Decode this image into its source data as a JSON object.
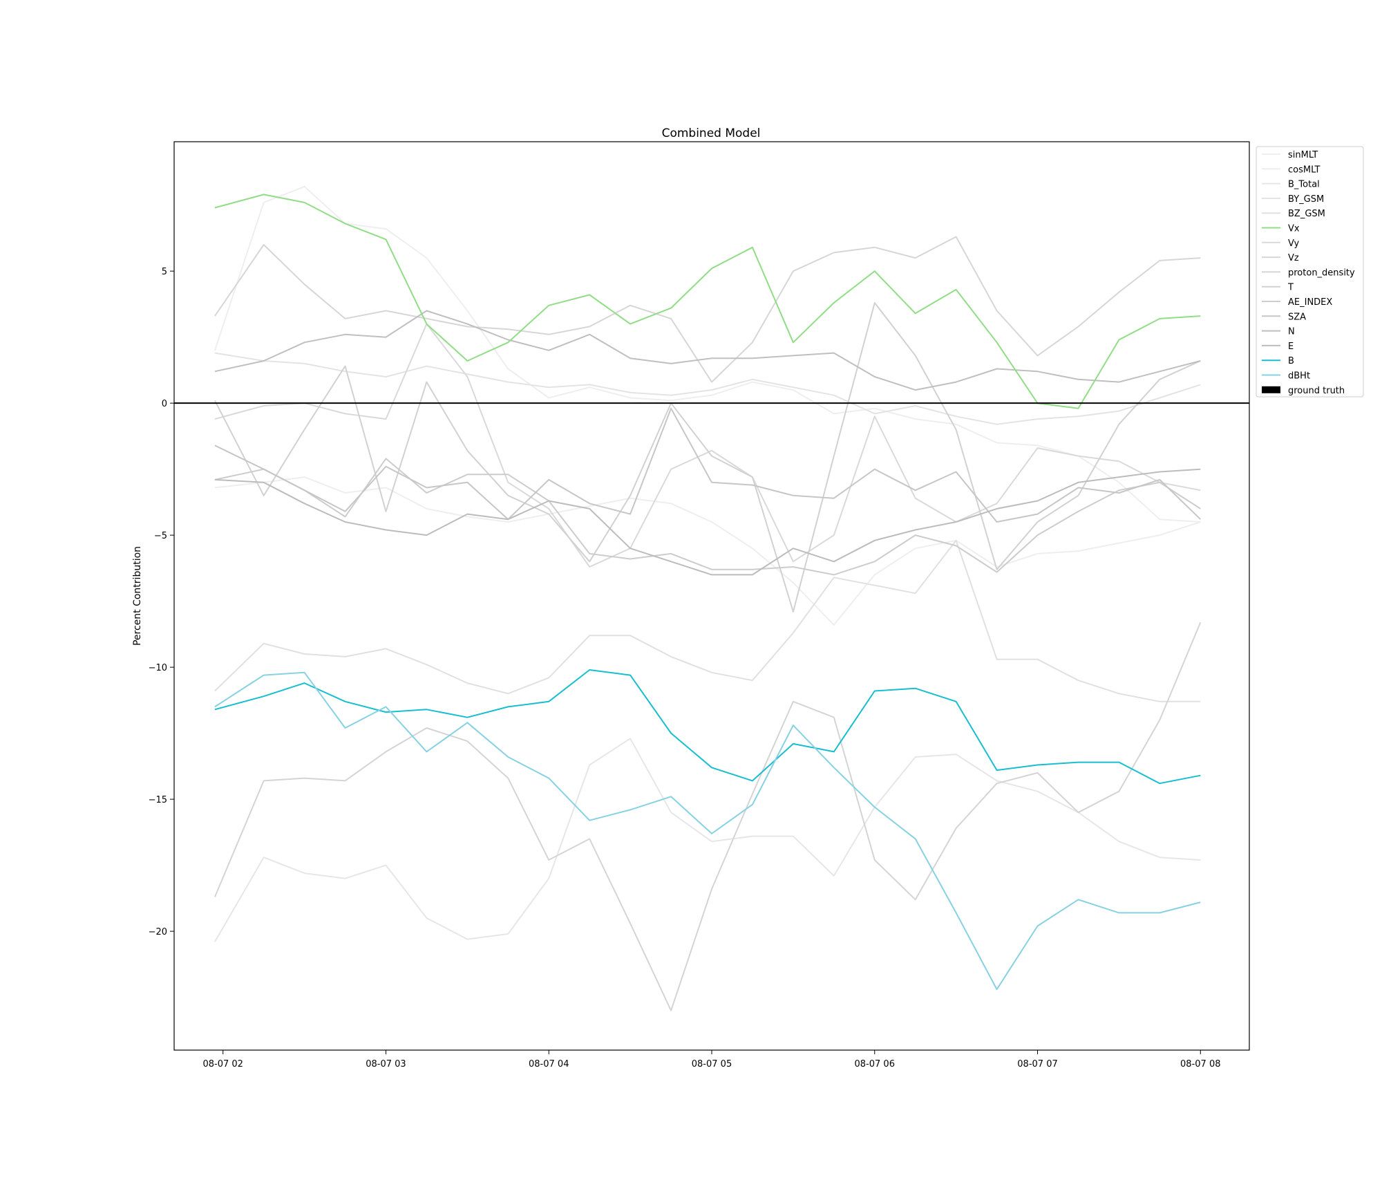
{
  "chart_data": {
    "type": "line",
    "title": "Combined Model",
    "xlabel": "",
    "ylabel": "Percent Contribution",
    "x_tick_labels": [
      "08-07 02",
      "08-07 03",
      "08-07 04",
      "08-07 05",
      "08-07 06",
      "08-07 07",
      "08-07 08"
    ],
    "y_tick_labels": [
      "−20",
      "−15",
      "−10",
      "−5",
      "0",
      "5"
    ],
    "y_ticks": [
      -20,
      -15,
      -10,
      -5,
      0,
      5
    ],
    "x_range_hours": [
      1.7,
      8.3
    ],
    "ylim": [
      -24.5,
      9.9
    ],
    "x_hours": [
      1.95,
      2.25,
      2.5,
      2.75,
      3.0,
      3.25,
      3.5,
      3.75,
      4.0,
      4.25,
      4.5,
      4.75,
      5.0,
      5.25,
      5.5,
      5.75,
      6.0,
      6.25,
      6.5,
      6.75,
      7.0,
      7.25,
      7.5,
      7.75,
      8.0
    ],
    "zero_line": {
      "y": 0,
      "color": "#000000"
    },
    "grid": false,
    "legend_position": "upper-right-outside",
    "series": [
      {
        "name": "sinMLT",
        "color": "#eeeeee",
        "values": [
          2.0,
          7.6,
          8.2,
          6.8,
          6.6,
          5.5,
          3.5,
          1.3,
          0.2,
          0.6,
          0.2,
          0.1,
          0.3,
          0.8,
          0.5,
          -0.4,
          -0.2,
          -0.6,
          -0.8,
          -1.5,
          -1.6,
          -2.0,
          -3.0,
          -4.4,
          -4.5
        ]
      },
      {
        "name": "cosMLT",
        "color": "#eeeeee",
        "values": [
          -3.2,
          -3.0,
          -2.8,
          -3.4,
          -3.2,
          -4.0,
          -4.3,
          -4.5,
          -4.2,
          -3.9,
          -3.6,
          -3.8,
          -4.5,
          -5.5,
          -6.8,
          -8.4,
          -6.5,
          -5.5,
          -5.2,
          -6.2,
          -5.7,
          -5.6,
          -5.3,
          -5.0,
          -4.5
        ]
      },
      {
        "name": "B_Total",
        "color": "#e6e6e6",
        "values": [
          -20.4,
          -17.2,
          -17.8,
          -18.0,
          -17.5,
          -19.5,
          -20.3,
          -20.1,
          -18.0,
          -13.7,
          -12.7,
          -15.5,
          -16.6,
          -16.4,
          -16.4,
          -17.9,
          -15.3,
          -13.4,
          -13.3,
          -14.3,
          -14.7,
          -15.5,
          -16.6,
          -17.2,
          -17.3
        ]
      },
      {
        "name": "BY_GSM",
        "color": "#e3e3e3",
        "values": [
          1.9,
          1.6,
          1.5,
          1.2,
          1.0,
          1.4,
          1.1,
          0.8,
          0.6,
          0.7,
          0.4,
          0.3,
          0.5,
          0.9,
          0.6,
          0.3,
          -0.4,
          -0.1,
          -0.5,
          -0.8,
          -0.6,
          -0.5,
          -0.3,
          0.2,
          0.7
        ]
      },
      {
        "name": "BZ_GSM",
        "color": "#e0e0e0",
        "values": [
          -10.9,
          -9.1,
          -9.5,
          -9.6,
          -9.3,
          -9.9,
          -10.6,
          -11.0,
          -10.4,
          -8.8,
          -8.8,
          -9.6,
          -10.2,
          -10.5,
          -8.7,
          -6.6,
          -6.9,
          -7.2,
          -5.2,
          -9.7,
          -9.7,
          -10.5,
          -11.0,
          -11.3,
          -11.3
        ]
      },
      {
        "name": "Vx",
        "color": "#90dd86",
        "values": [
          7.4,
          7.9,
          7.6,
          6.8,
          6.2,
          3.0,
          1.6,
          2.3,
          3.7,
          4.1,
          3.0,
          3.6,
          5.1,
          5.9,
          2.3,
          3.8,
          5.0,
          3.4,
          4.3,
          2.3,
          0.0,
          -0.2,
          2.4,
          3.2,
          3.3
        ]
      },
      {
        "name": "Vy",
        "color": "#d9d9d9",
        "values": [
          -0.6,
          -0.1,
          0.0,
          -0.4,
          -0.6,
          3.0,
          1.0,
          -3.0,
          -4.0,
          -6.2,
          -5.5,
          -2.5,
          -1.8,
          -2.8,
          -6.0,
          -5.0,
          -0.5,
          -3.6,
          -4.5,
          -3.8,
          -1.7,
          -2.0,
          -2.2,
          -3.0,
          -3.3
        ]
      },
      {
        "name": "Vz",
        "color": "#d6d6d6",
        "values": [
          3.3,
          6.0,
          4.5,
          3.2,
          3.5,
          3.2,
          2.9,
          2.8,
          2.6,
          2.9,
          3.7,
          3.2,
          0.8,
          2.3,
          5.0,
          5.7,
          5.9,
          5.5,
          6.3,
          3.5,
          1.8,
          2.9,
          4.2,
          5.4,
          5.5
        ]
      },
      {
        "name": "proton_density",
        "color": "#d4d4d4",
        "values": [
          -18.7,
          -14.3,
          -14.2,
          -14.3,
          -13.2,
          -12.3,
          -12.8,
          -14.2,
          -17.3,
          -16.5,
          -19.7,
          -23.0,
          -18.4,
          -14.8,
          -11.3,
          -11.9,
          -17.3,
          -18.8,
          -16.1,
          -14.4,
          -14.0,
          -15.5,
          -14.7,
          -12.0,
          -8.3
        ]
      },
      {
        "name": "T",
        "color": "#d1d1d1",
        "values": [
          0.1,
          -3.5,
          -1.0,
          1.4,
          -4.1,
          0.8,
          -1.8,
          -3.5,
          -4.2,
          -6.0,
          -3.5,
          0.0,
          -2.0,
          -2.8,
          -7.9,
          -2.0,
          3.8,
          1.8,
          -1.0,
          -6.3,
          -4.5,
          -3.5,
          -0.8,
          0.9,
          1.6
        ]
      },
      {
        "name": "AE_INDEX",
        "color": "#cccccc",
        "values": [
          -2.9,
          -2.5,
          -3.3,
          -4.3,
          -2.1,
          -3.4,
          -2.7,
          -2.7,
          -3.7,
          -5.7,
          -5.9,
          -5.7,
          -6.3,
          -6.3,
          -6.2,
          -6.5,
          -6.0,
          -5.0,
          -5.4,
          -6.4,
          -5.0,
          -4.1,
          -3.3,
          -3.0,
          -4.0
        ]
      },
      {
        "name": "SZA",
        "color": "#c6c6c6",
        "values": [
          -1.6,
          -2.5,
          -3.3,
          -4.1,
          -2.4,
          -3.2,
          -3.0,
          -4.4,
          -2.9,
          -3.8,
          -4.2,
          -0.2,
          -3.0,
          -3.1,
          -3.5,
          -3.6,
          -2.5,
          -3.3,
          -2.6,
          -4.5,
          -4.2,
          -3.2,
          -3.4,
          -2.9,
          -4.4
        ]
      },
      {
        "name": "N",
        "color": "#bfbfbf",
        "values": [
          1.2,
          1.6,
          2.3,
          2.6,
          2.5,
          3.5,
          3.0,
          2.4,
          2.0,
          2.6,
          1.7,
          1.5,
          1.7,
          1.7,
          1.8,
          1.9,
          1.0,
          0.5,
          0.8,
          1.3,
          1.2,
          0.9,
          0.8,
          1.2,
          1.6
        ]
      },
      {
        "name": "E",
        "color": "#bcbcbc",
        "values": [
          -2.9,
          -3.0,
          -3.8,
          -4.5,
          -4.8,
          -5.0,
          -4.2,
          -4.4,
          -3.7,
          -4.0,
          -5.5,
          -6.0,
          -6.5,
          -6.5,
          -5.5,
          -6.0,
          -5.2,
          -4.8,
          -4.5,
          -4.0,
          -3.7,
          -3.0,
          -2.8,
          -2.6,
          -2.5
        ]
      },
      {
        "name": "B",
        "color": "#17becf",
        "values": [
          -11.6,
          -11.1,
          -10.6,
          -11.3,
          -11.7,
          -11.6,
          -11.9,
          -11.5,
          -11.3,
          -10.1,
          -10.3,
          -12.5,
          -13.8,
          -14.3,
          -12.9,
          -13.2,
          -10.9,
          -10.8,
          -11.3,
          -13.9,
          -13.7,
          -13.6,
          -13.6,
          -14.4,
          -14.1
        ]
      },
      {
        "name": "dBHt",
        "color": "#86d1e2",
        "values": [
          -11.5,
          -10.3,
          -10.2,
          -12.3,
          -11.5,
          -13.2,
          -12.1,
          -13.4,
          -14.2,
          -15.8,
          -15.4,
          -14.9,
          -16.3,
          -15.2,
          -12.2,
          -13.8,
          -15.3,
          -16.5,
          -19.3,
          -22.2,
          -19.8,
          -18.8,
          -19.3,
          -19.3,
          -18.9
        ]
      },
      {
        "name": "ground truth",
        "color": "#000000",
        "values": []
      }
    ]
  }
}
